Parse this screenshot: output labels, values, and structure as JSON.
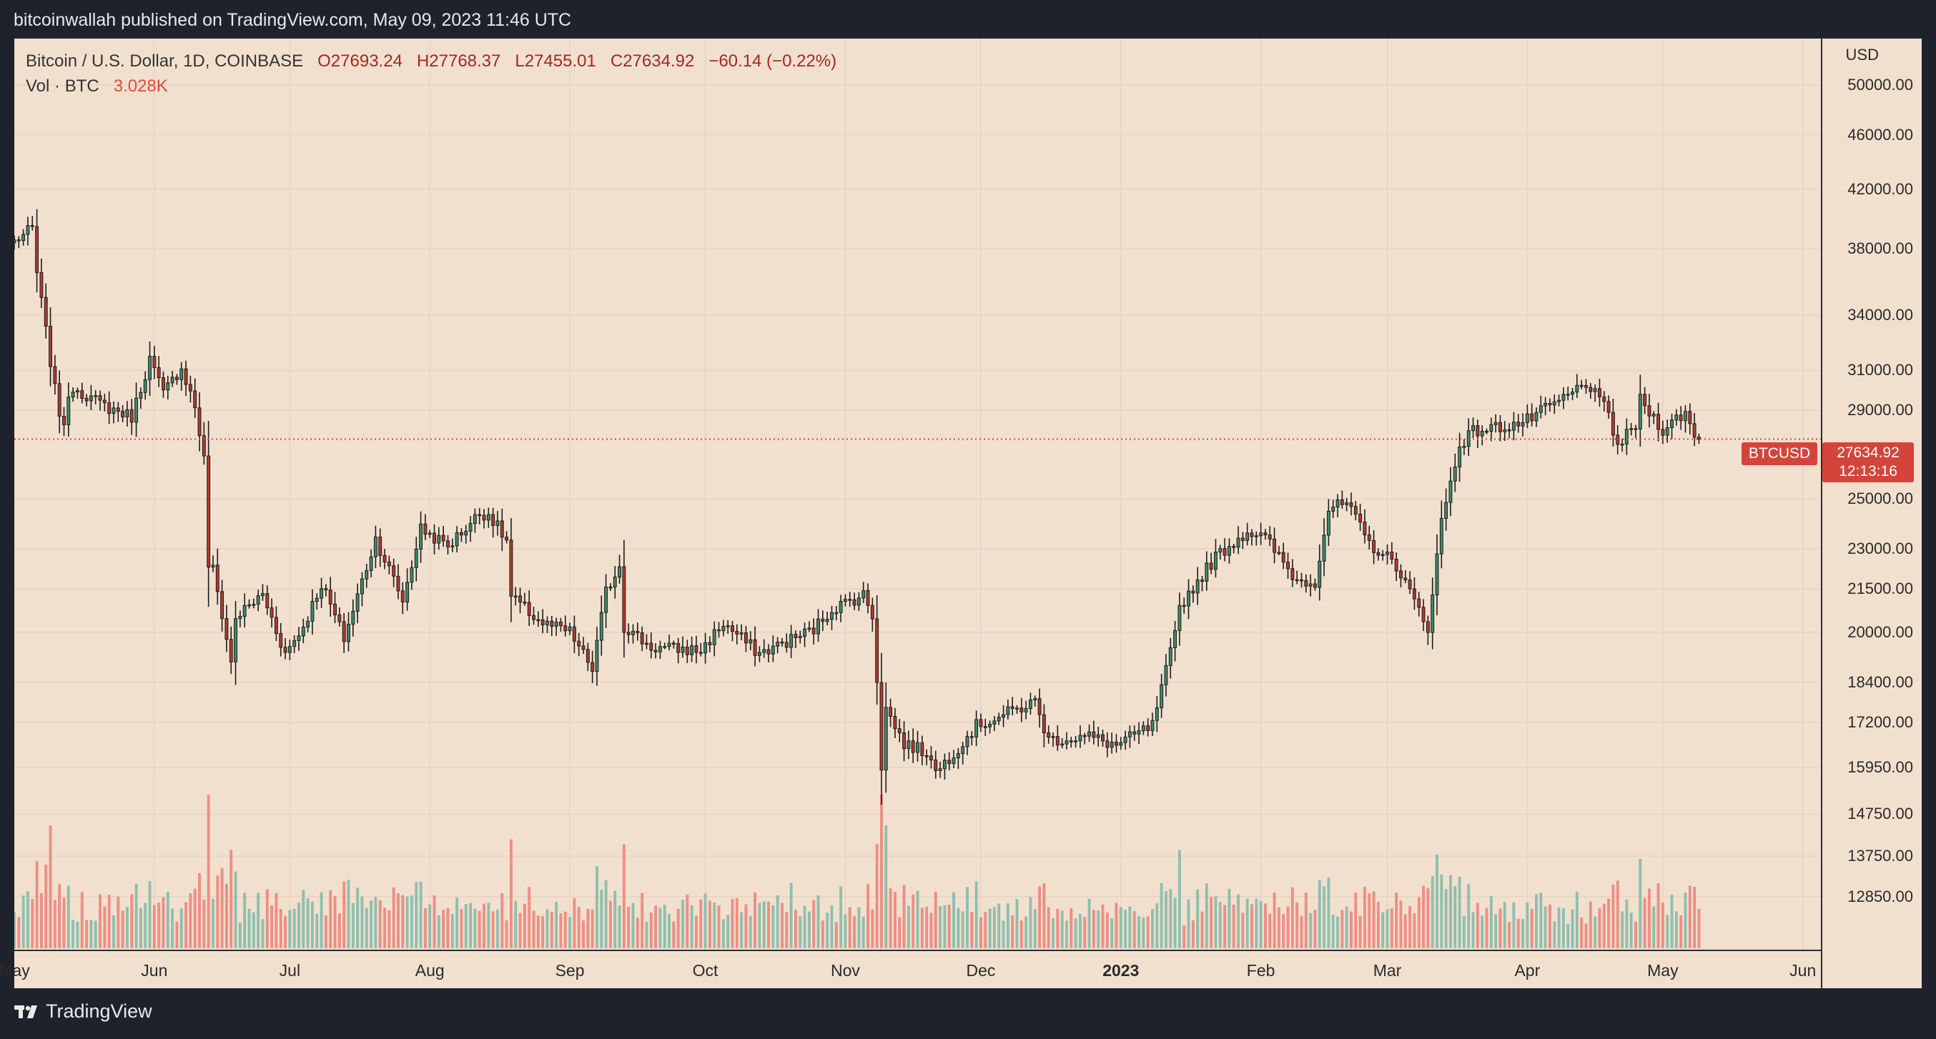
{
  "header": {
    "published": "bitcoinwallah published on TradingView.com, May 09, 2023 11:46 UTC"
  },
  "legend": {
    "symbol": "Bitcoin / U.S. Dollar, 1D, COINBASE",
    "open": "O27693.24",
    "high": "H27768.37",
    "low": "L27455.01",
    "close": "C27634.92",
    "change": "−60.14 (−0.22%)",
    "vol_label": "Vol · BTC",
    "vol_value": "3.028K"
  },
  "price_axis": {
    "currency": "USD",
    "ticks": [
      "50000.00",
      "46000.00",
      "42000.00",
      "38000.00",
      "34000.00",
      "31000.00",
      "29000.00",
      "25000.00",
      "23000.00",
      "21500.00",
      "20000.00",
      "18400.00",
      "17200.00",
      "15950.00",
      "14750.00",
      "13750.00",
      "12850.00"
    ]
  },
  "time_axis": {
    "labels": [
      {
        "text": "May",
        "bold": false
      },
      {
        "text": "Jun",
        "bold": false
      },
      {
        "text": "Jul",
        "bold": false
      },
      {
        "text": "Aug",
        "bold": false
      },
      {
        "text": "Sep",
        "bold": false
      },
      {
        "text": "Oct",
        "bold": false
      },
      {
        "text": "Nov",
        "bold": false
      },
      {
        "text": "Dec",
        "bold": false
      },
      {
        "text": "2023",
        "bold": true
      },
      {
        "text": "Feb",
        "bold": false
      },
      {
        "text": "Mar",
        "bold": false
      },
      {
        "text": "Apr",
        "bold": false
      },
      {
        "text": "May",
        "bold": false
      },
      {
        "text": "Jun",
        "bold": false
      }
    ]
  },
  "last_price": {
    "symbol": "BTCUSD",
    "price": "27634.92",
    "countdown": "12:13:16"
  },
  "brand": {
    "name": "TradingView"
  },
  "colors": {
    "up": "#3e8a6a",
    "down": "#b33a2e",
    "background": "#f2e0cf",
    "frame": "#1e222d",
    "vol_up": "#8fbfae",
    "vol_down": "#ee8e84"
  },
  "chart_data": {
    "type": "candlestick",
    "title": "Bitcoin / U.S. Dollar, 1D, COINBASE",
    "y_scale": "log",
    "ylabel": "USD",
    "ylim": [
      11800,
      54000
    ],
    "x_range": [
      "2022-05-01",
      "2023-06-05"
    ],
    "anchors": [
      [
        "2022-05-01",
        38500
      ],
      [
        "2022-05-05",
        39300
      ],
      [
        "2022-05-06",
        36500
      ],
      [
        "2022-05-09",
        31500
      ],
      [
        "2022-05-10",
        30000
      ],
      [
        "2022-05-11",
        28900
      ],
      [
        "2022-05-12",
        28500
      ],
      [
        "2022-05-14",
        30200
      ],
      [
        "2022-05-20",
        29300
      ],
      [
        "2022-05-27",
        28700
      ],
      [
        "2022-05-31",
        31600
      ],
      [
        "2022-06-03",
        29800
      ],
      [
        "2022-06-07",
        31200
      ],
      [
        "2022-06-10",
        29200
      ],
      [
        "2022-06-12",
        26700
      ],
      [
        "2022-06-13",
        22400
      ],
      [
        "2022-06-14",
        22200
      ],
      [
        "2022-06-16",
        20600
      ],
      [
        "2022-06-18",
        19000
      ],
      [
        "2022-06-19",
        20500
      ],
      [
        "2022-06-25",
        21300
      ],
      [
        "2022-06-30",
        19300
      ],
      [
        "2022-07-04",
        20200
      ],
      [
        "2022-07-08",
        21700
      ],
      [
        "2022-07-13",
        19800
      ],
      [
        "2022-07-20",
        23400
      ],
      [
        "2022-07-26",
        21100
      ],
      [
        "2022-07-30",
        23800
      ],
      [
        "2022-08-05",
        23100
      ],
      [
        "2022-08-12",
        24400
      ],
      [
        "2022-08-14",
        24400
      ],
      [
        "2022-08-18",
        23300
      ],
      [
        "2022-08-19",
        21200
      ],
      [
        "2022-08-26",
        20300
      ],
      [
        "2022-09-01",
        20000
      ],
      [
        "2022-09-06",
        18800
      ],
      [
        "2022-09-09",
        21400
      ],
      [
        "2022-09-12",
        22400
      ],
      [
        "2022-09-13",
        20200
      ],
      [
        "2022-09-19",
        19500
      ],
      [
        "2022-09-30",
        19400
      ],
      [
        "2022-10-05",
        20300
      ],
      [
        "2022-10-13",
        19300
      ],
      [
        "2022-10-25",
        20100
      ],
      [
        "2022-10-29",
        20800
      ],
      [
        "2022-11-05",
        21300
      ],
      [
        "2022-11-07",
        20600
      ],
      [
        "2022-11-08",
        18500
      ],
      [
        "2022-11-09",
        16000
      ],
      [
        "2022-11-10",
        17600
      ],
      [
        "2022-11-14",
        16600
      ],
      [
        "2022-11-20",
        16300
      ],
      [
        "2022-11-21",
        15800
      ],
      [
        "2022-11-30",
        17100
      ],
      [
        "2022-12-13",
        17800
      ],
      [
        "2022-12-16",
        16700
      ],
      [
        "2022-12-25",
        16800
      ],
      [
        "2022-12-31",
        16550
      ],
      [
        "2023-01-08",
        17100
      ],
      [
        "2023-01-13",
        19900
      ],
      [
        "2023-01-14",
        20900
      ],
      [
        "2023-01-22",
        22700
      ],
      [
        "2023-01-29",
        23700
      ],
      [
        "2023-02-02",
        23400
      ],
      [
        "2023-02-09",
        21800
      ],
      [
        "2023-02-13",
        21800
      ],
      [
        "2023-02-16",
        24600
      ],
      [
        "2023-02-20",
        24800
      ],
      [
        "2023-02-25",
        23200
      ],
      [
        "2023-03-03",
        22400
      ],
      [
        "2023-03-09",
        20400
      ],
      [
        "2023-03-10",
        20200
      ],
      [
        "2023-03-13",
        24100
      ],
      [
        "2023-03-17",
        27400
      ],
      [
        "2023-03-20",
        28000
      ],
      [
        "2023-03-31",
        28400
      ],
      [
        "2023-04-10",
        29700
      ],
      [
        "2023-04-14",
        30400
      ],
      [
        "2023-04-19",
        28800
      ],
      [
        "2023-04-21",
        27300
      ],
      [
        "2023-04-25",
        28300
      ],
      [
        "2023-04-26",
        29500
      ],
      [
        "2023-05-01",
        28100
      ],
      [
        "2023-05-06",
        28900
      ],
      [
        "2023-05-08",
        27700
      ],
      [
        "2023-05-09",
        27635
      ]
    ],
    "last_price": 27634.92,
    "volume_peaks": [
      [
        "2022-05-09",
        1.0
      ],
      [
        "2022-06-13",
        1.15
      ],
      [
        "2022-06-18",
        0.8
      ],
      [
        "2022-11-09",
        1.25
      ],
      [
        "2022-11-10",
        1.0
      ],
      [
        "2023-01-14",
        0.8
      ],
      [
        "2023-03-13",
        0.6
      ],
      [
        "2023-04-21",
        0.55
      ]
    ]
  }
}
